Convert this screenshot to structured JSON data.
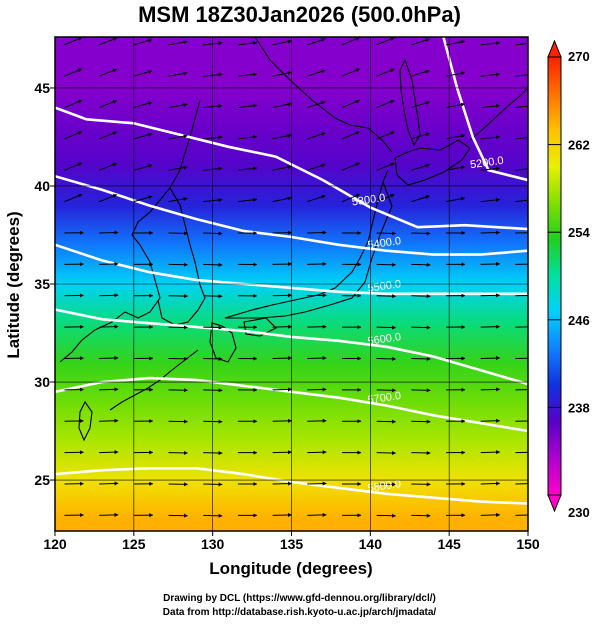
{
  "title": "MSM 18Z30Jan2026 (500.0hPa)",
  "credits": {
    "line1": "Drawing by DCL (https://www.gfd-dennou.org/library/dcl/)",
    "line2": "Data from http://database.rish.kyoto-u.ac.jp/arch/jmadata/"
  },
  "axes": {
    "xlabel": "Longitude (degrees)",
    "ylabel": "Latitude  (degrees)",
    "xlim": [
      120,
      150
    ],
    "ylim": [
      22.4,
      47.6
    ],
    "xticks": [
      120,
      125,
      130,
      135,
      140,
      145,
      150
    ],
    "yticks": [
      25,
      30,
      35,
      40,
      45
    ]
  },
  "colorbar": {
    "min": 230,
    "max": 270,
    "labeled_ticks": [
      230,
      238,
      246,
      254,
      262,
      270
    ],
    "colors": [
      "#ff00c8",
      "#b000d0",
      "#5a00c8",
      "#1030e0",
      "#1080ff",
      "#00d0ff",
      "#00e0a0",
      "#20d020",
      "#80e000",
      "#e8f000",
      "#ffc000",
      "#ff7000",
      "#ff2000"
    ]
  },
  "contours": {
    "labels": [
      "5200.0",
      "5300.0",
      "5400.0",
      "5500.0",
      "5600.0",
      "5700.0",
      "5800.0"
    ]
  },
  "chart_data": {
    "type": "heatmap",
    "title": "MSM 18Z30Jan2026 (500.0hPa)",
    "xlabel": "Longitude (degrees)",
    "ylabel": "Latitude  (degrees)",
    "xlim": [
      120,
      150
    ],
    "ylim": [
      22.4,
      47.6
    ],
    "color_range": [
      230,
      270
    ],
    "field_by_latitude": [
      [
        23,
        264
      ],
      [
        25,
        261
      ],
      [
        27,
        258
      ],
      [
        29,
        256
      ],
      [
        31,
        254
      ],
      [
        33,
        251
      ],
      [
        35,
        247
      ],
      [
        37,
        243
      ],
      [
        39,
        239
      ],
      [
        41,
        237
      ],
      [
        43,
        236
      ],
      [
        45,
        235
      ],
      [
        47,
        235
      ]
    ],
    "contour_lines": [
      {
        "level": "5200.0",
        "points": [
          [
            144.5,
            48
          ],
          [
            145.5,
            45
          ],
          [
            146.5,
            42.5
          ],
          [
            147.5,
            40.8
          ],
          [
            150,
            40.3
          ]
        ]
      },
      {
        "level": "5300.0",
        "points": [
          [
            120,
            44
          ],
          [
            122,
            43.4
          ],
          [
            125,
            43.2
          ],
          [
            128,
            42.6
          ],
          [
            131,
            42
          ],
          [
            134,
            41.5
          ],
          [
            137,
            40.3
          ],
          [
            140,
            38.9
          ],
          [
            143,
            37.9
          ],
          [
            146,
            38
          ],
          [
            150,
            37.8
          ]
        ]
      },
      {
        "level": "5400.0",
        "points": [
          [
            120,
            40.5
          ],
          [
            123,
            39.8
          ],
          [
            126,
            39
          ],
          [
            129,
            38.3
          ],
          [
            132,
            37.7
          ],
          [
            135,
            37.4
          ],
          [
            138,
            37
          ],
          [
            141,
            36.7
          ],
          [
            144,
            36.5
          ],
          [
            147,
            36.5
          ],
          [
            150,
            36.7
          ]
        ]
      },
      {
        "level": "5500.0",
        "points": [
          [
            120,
            37
          ],
          [
            123,
            36.2
          ],
          [
            126,
            35.6
          ],
          [
            129,
            35.2
          ],
          [
            132,
            35
          ],
          [
            135,
            34.8
          ],
          [
            138,
            34.6
          ],
          [
            141,
            34.5
          ],
          [
            144,
            34.5
          ],
          [
            147,
            34.5
          ],
          [
            150,
            34.5
          ]
        ]
      },
      {
        "level": "5600.0",
        "points": [
          [
            120,
            33.7
          ],
          [
            123,
            33.2
          ],
          [
            126,
            33
          ],
          [
            129,
            32.8
          ],
          [
            132,
            32.6
          ],
          [
            135,
            32.3
          ],
          [
            138,
            32.1
          ],
          [
            141,
            31.8
          ],
          [
            144,
            31.3
          ],
          [
            147,
            30.6
          ],
          [
            150,
            29.9
          ]
        ]
      },
      {
        "level": "5700.0",
        "points": [
          [
            120,
            29.5
          ],
          [
            123,
            30
          ],
          [
            126,
            30.2
          ],
          [
            129,
            30.1
          ],
          [
            132,
            29.8
          ],
          [
            135,
            29.5
          ],
          [
            138,
            29.2
          ],
          [
            141,
            28.8
          ],
          [
            144,
            28.3
          ],
          [
            147,
            27.9
          ],
          [
            150,
            27.5
          ]
        ]
      },
      {
        "level": "5800.0",
        "points": [
          [
            120,
            25.3
          ],
          [
            123,
            25.5
          ],
          [
            126,
            25.6
          ],
          [
            129,
            25.6
          ],
          [
            132,
            25.3
          ],
          [
            135,
            24.9
          ],
          [
            138,
            24.6
          ],
          [
            141,
            24.3
          ],
          [
            144,
            24.1
          ],
          [
            147,
            23.9
          ],
          [
            150,
            23.8
          ]
        ]
      }
    ],
    "wind_pattern": "mostly westerly (eastward) arrows; cyclonic circulations near 123E 46N and 141E 41.5N",
    "grid": true
  }
}
